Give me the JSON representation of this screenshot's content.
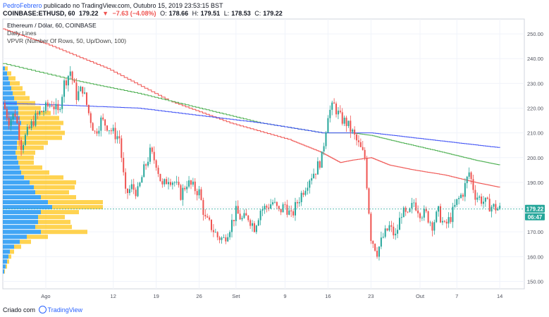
{
  "header": {
    "author": "PedroFebrero",
    "published": " publicado no TradingView.com, Outubro 15, 2019 23:53:15 BST",
    "symbol": "COINBASE:ETHUSD, 60",
    "last": "179.22",
    "arrow": "▼",
    "change": "−7.63 (−4.08%)",
    "o_label": "O:",
    "o": "178.66",
    "h_label": "H:",
    "h": "179.51",
    "l_label": "L:",
    "l": "178.53",
    "c_label": "C:",
    "c": "179.22"
  },
  "legend": {
    "title": "Ethereum / Dólar, 60, COINBASE",
    "line2": "Daily Lines",
    "line3": "VPVR (Number Of Rows, 50, Up/Down, 100)"
  },
  "footer": {
    "prefix": "Criado com",
    "brand": "TradingView"
  },
  "price_label": {
    "price": "179.22",
    "timer": "06:47",
    "color": "#26a69a"
  },
  "colors": {
    "up": "#26a69a",
    "down": "#ef5350",
    "vol_up": "#2196f3",
    "vol_down": "#ffc107",
    "ma_red": "#ef5350",
    "ma_green": "#4caf50",
    "ma_blue": "#3f51f5",
    "axis_text": "#50535e",
    "grid": "#f0f3fa"
  },
  "chart_data": {
    "type": "candlestick",
    "ylim": [
      147,
      256
    ],
    "y_ticks": [
      150,
      160,
      170,
      180,
      190,
      200,
      210,
      220,
      230,
      240,
      250
    ],
    "x_ticks": [
      {
        "label": "Ago",
        "day": 0
      },
      {
        "label": "12",
        "day": 11
      },
      {
        "label": "19",
        "day": 18
      },
      {
        "label": "26",
        "day": 25
      },
      {
        "label": "Set",
        "day": 31
      },
      {
        "label": "9",
        "day": 39
      },
      {
        "label": "16",
        "day": 46
      },
      {
        "label": "23",
        "day": 53
      },
      {
        "label": "Out",
        "day": 61
      },
      {
        "label": "7",
        "day": 67
      },
      {
        "label": "14",
        "day": 74
      }
    ],
    "x_range_days": [
      -7,
      78
    ],
    "price_path": [
      [
        -7,
        222
      ],
      [
        -6,
        215
      ],
      [
        -5,
        218
      ],
      [
        -4,
        205
      ],
      [
        -3,
        210
      ],
      [
        -2,
        215
      ],
      [
        -1,
        218
      ],
      [
        0,
        220
      ],
      [
        1,
        222
      ],
      [
        2,
        218
      ],
      [
        3,
        230
      ],
      [
        4,
        235
      ],
      [
        5,
        225
      ],
      [
        6,
        228
      ],
      [
        7,
        218
      ],
      [
        8,
        210
      ],
      [
        9,
        215
      ],
      [
        10,
        213
      ],
      [
        11,
        210
      ],
      [
        12,
        208
      ],
      [
        13,
        185
      ],
      [
        14,
        188
      ],
      [
        15,
        186
      ],
      [
        16,
        195
      ],
      [
        17,
        202
      ],
      [
        18,
        198
      ],
      [
        19,
        188
      ],
      [
        20,
        192
      ],
      [
        21,
        190
      ],
      [
        22,
        185
      ],
      [
        23,
        190
      ],
      [
        24,
        188
      ],
      [
        25,
        186
      ],
      [
        26,
        175
      ],
      [
        27,
        172
      ],
      [
        28,
        168
      ],
      [
        29,
        167
      ],
      [
        30,
        172
      ],
      [
        31,
        178
      ],
      [
        32,
        175
      ],
      [
        33,
        176
      ],
      [
        34,
        172
      ],
      [
        35,
        179
      ],
      [
        36,
        180
      ],
      [
        37,
        182
      ],
      [
        38,
        178
      ],
      [
        39,
        181
      ],
      [
        40,
        176
      ],
      [
        41,
        182
      ],
      [
        42,
        187
      ],
      [
        43,
        192
      ],
      [
        44,
        195
      ],
      [
        45,
        200
      ],
      [
        46,
        218
      ],
      [
        47,
        221
      ],
      [
        48,
        216
      ],
      [
        49,
        214
      ],
      [
        50,
        210
      ],
      [
        51,
        205
      ],
      [
        52,
        200
      ],
      [
        53,
        168
      ],
      [
        54,
        162
      ],
      [
        55,
        168
      ],
      [
        56,
        172
      ],
      [
        57,
        168
      ],
      [
        58,
        178
      ],
      [
        59,
        176
      ],
      [
        60,
        182
      ],
      [
        61,
        178
      ],
      [
        62,
        177
      ],
      [
        63,
        173
      ],
      [
        64,
        178
      ],
      [
        65,
        172
      ],
      [
        66,
        176
      ],
      [
        67,
        182
      ],
      [
        68,
        186
      ],
      [
        69,
        194
      ],
      [
        70,
        185
      ],
      [
        71,
        183
      ],
      [
        72,
        181
      ],
      [
        73,
        180
      ],
      [
        74,
        179.22
      ]
    ],
    "ma_red": [
      [
        -7,
        252
      ],
      [
        0,
        246
      ],
      [
        10,
        236
      ],
      [
        20,
        223
      ],
      [
        30,
        214
      ],
      [
        40,
        207
      ],
      [
        45,
        202
      ],
      [
        48,
        198
      ],
      [
        50,
        199
      ],
      [
        53,
        200
      ],
      [
        56,
        197
      ],
      [
        60,
        195
      ],
      [
        65,
        193
      ],
      [
        70,
        190
      ],
      [
        74,
        188
      ]
    ],
    "ma_green": [
      [
        -7,
        238
      ],
      [
        5,
        231
      ],
      [
        15,
        226
      ],
      [
        25,
        220
      ],
      [
        35,
        214
      ],
      [
        45,
        210
      ],
      [
        50,
        210
      ],
      [
        53,
        209
      ],
      [
        58,
        206
      ],
      [
        65,
        202
      ],
      [
        70,
        199
      ],
      [
        74,
        197
      ]
    ],
    "ma_blue": [
      [
        -7,
        222
      ],
      [
        5,
        221
      ],
      [
        15,
        220
      ],
      [
        25,
        217
      ],
      [
        35,
        214
      ],
      [
        45,
        210
      ],
      [
        53,
        210
      ],
      [
        60,
        208
      ],
      [
        67,
        206
      ],
      [
        74,
        204
      ]
    ],
    "vpvr": [
      {
        "price": 236,
        "up": 3,
        "down": 4
      },
      {
        "price": 234,
        "up": 6,
        "down": 6
      },
      {
        "price": 232,
        "up": 8,
        "down": 10
      },
      {
        "price": 230,
        "up": 10,
        "down": 14
      },
      {
        "price": 228,
        "up": 12,
        "down": 16
      },
      {
        "price": 226,
        "up": 14,
        "down": 18
      },
      {
        "price": 224,
        "up": 16,
        "down": 22
      },
      {
        "price": 222,
        "up": 20,
        "down": 26
      },
      {
        "price": 220,
        "up": 22,
        "down": 32
      },
      {
        "price": 218,
        "up": 22,
        "down": 46
      },
      {
        "price": 216,
        "up": 24,
        "down": 56
      },
      {
        "price": 214,
        "up": 26,
        "down": 60
      },
      {
        "price": 212,
        "up": 24,
        "down": 58
      },
      {
        "price": 210,
        "up": 22,
        "down": 66
      },
      {
        "price": 208,
        "up": 22,
        "down": 62
      },
      {
        "price": 206,
        "up": 20,
        "down": 44
      },
      {
        "price": 204,
        "up": 20,
        "down": 38
      },
      {
        "price": 202,
        "up": 18,
        "down": 28
      },
      {
        "price": 200,
        "up": 20,
        "down": 24
      },
      {
        "price": 198,
        "up": 22,
        "down": 22
      },
      {
        "price": 196,
        "up": 24,
        "down": 32
      },
      {
        "price": 194,
        "up": 26,
        "down": 40
      },
      {
        "price": 192,
        "up": 30,
        "down": 56
      },
      {
        "price": 190,
        "up": 38,
        "down": 66
      },
      {
        "price": 188,
        "up": 44,
        "down": 58
      },
      {
        "price": 186,
        "up": 46,
        "down": 48
      },
      {
        "price": 184,
        "up": 54,
        "down": 50
      },
      {
        "price": 182,
        "up": 64,
        "down": 78
      },
      {
        "price": 180,
        "up": 70,
        "down": 72
      },
      {
        "price": 178,
        "up": 54,
        "down": 54
      },
      {
        "price": 176,
        "up": 50,
        "down": 38
      },
      {
        "price": 174,
        "up": 50,
        "down": 46
      },
      {
        "price": 172,
        "up": 46,
        "down": 52
      },
      {
        "price": 170,
        "up": 54,
        "down": 66
      },
      {
        "price": 168,
        "up": 34,
        "down": 30
      },
      {
        "price": 166,
        "up": 24,
        "down": 16
      },
      {
        "price": 164,
        "up": 16,
        "down": 10
      },
      {
        "price": 162,
        "up": 10,
        "down": 6
      },
      {
        "price": 160,
        "up": 8,
        "down": 4
      },
      {
        "price": 158,
        "up": 6,
        "down": 3
      },
      {
        "price": 156,
        "up": 4,
        "down": 2
      },
      {
        "price": 154,
        "up": 2,
        "down": 1
      }
    ],
    "last_price": 179.22
  }
}
